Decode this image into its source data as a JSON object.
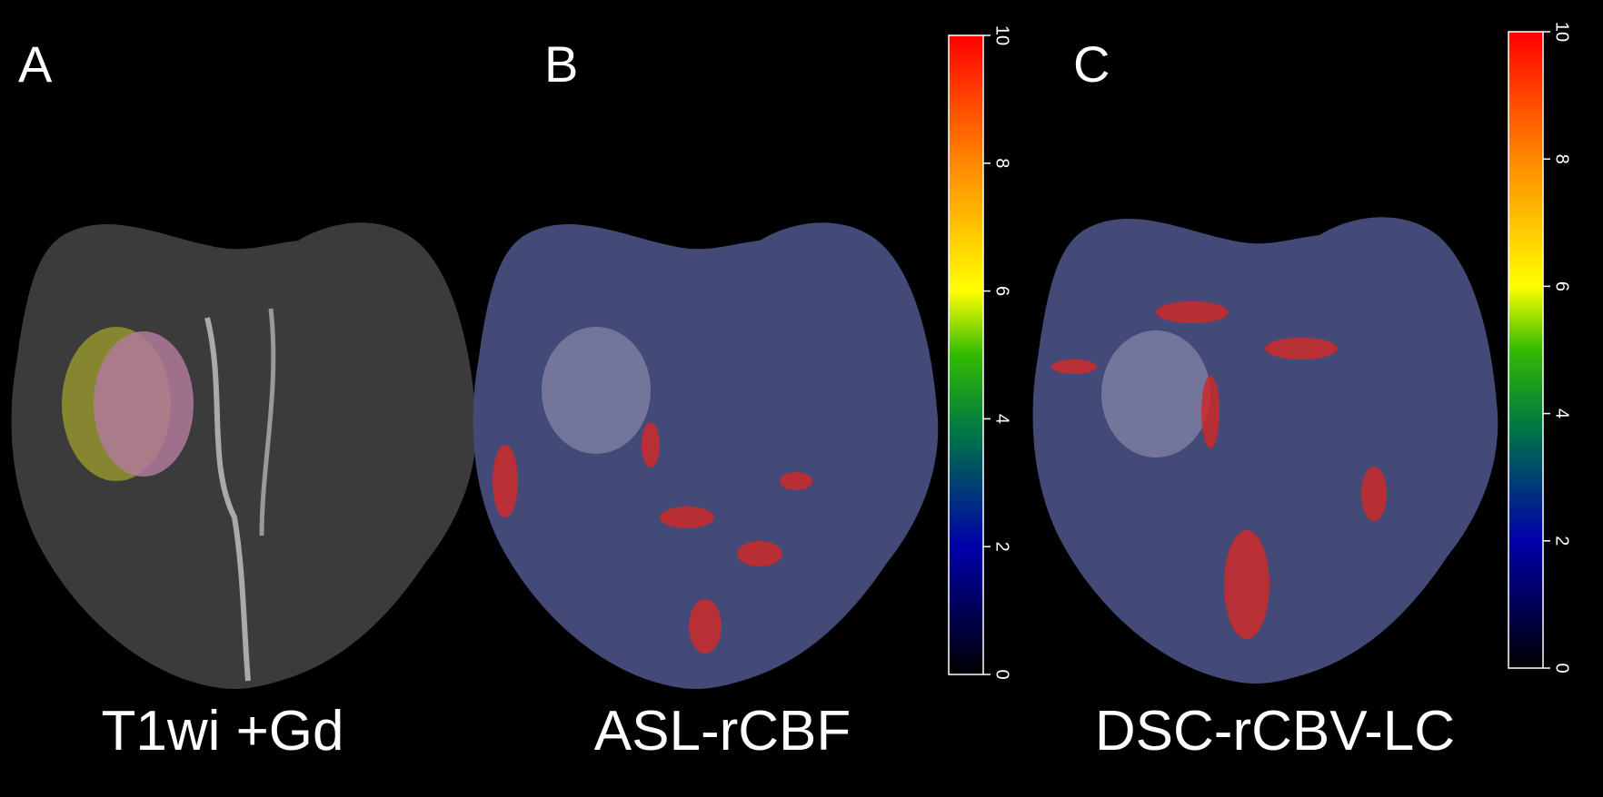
{
  "panels": [
    {
      "letter": "A",
      "caption": "T1wi +Gd"
    },
    {
      "letter": "B",
      "caption": "ASL-rCBF",
      "colorbar": {
        "lim": [
          0,
          10
        ],
        "ticks": [
          0,
          2,
          4,
          6,
          8,
          10
        ]
      }
    },
    {
      "letter": "C",
      "caption": "DSC-rCBV-LC",
      "colorbar": {
        "lim": [
          0,
          10
        ],
        "ticks": [
          0,
          2,
          4,
          6,
          8,
          10
        ]
      }
    }
  ]
}
